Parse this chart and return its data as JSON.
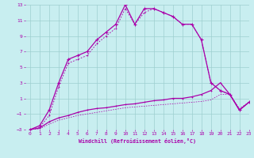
{
  "bg_color": "#c8eef0",
  "grid_color": "#9ecfcf",
  "line_color": "#aa00aa",
  "xlim": [
    -0.5,
    23
  ],
  "ylim": [
    -3,
    13
  ],
  "xticks": [
    0,
    1,
    2,
    3,
    4,
    5,
    6,
    7,
    8,
    9,
    10,
    11,
    12,
    13,
    14,
    15,
    16,
    17,
    18,
    19,
    20,
    21,
    22,
    23
  ],
  "yticks": [
    -3,
    -1,
    1,
    3,
    5,
    7,
    9,
    11,
    13
  ],
  "xlabel": "Windchill (Refroidissement éolien,°C)",
  "line1_x": [
    0,
    1,
    2,
    3,
    4,
    5,
    6,
    7,
    8,
    9,
    10,
    11,
    12,
    13,
    14,
    15,
    16,
    17,
    18,
    19,
    20,
    21,
    22,
    23
  ],
  "line1_y": [
    -3,
    -2.5,
    -0.5,
    3,
    6,
    6.5,
    7,
    8.5,
    9.5,
    10.5,
    13,
    10.5,
    12.5,
    12.5,
    12,
    11.5,
    10.5,
    10.5,
    8.5,
    3,
    2,
    1.5,
    -0.5,
    0.5
  ],
  "line2_x": [
    0,
    1,
    2,
    3,
    4,
    5,
    6,
    7,
    8,
    9,
    10,
    11,
    12,
    13,
    14,
    15,
    16,
    17,
    18,
    19,
    20,
    21,
    22,
    23
  ],
  "line2_y": [
    -3,
    -2.7,
    -1.2,
    2.5,
    5.5,
    6.0,
    6.5,
    8.0,
    9.0,
    10.0,
    12.5,
    10.5,
    12.0,
    12.5,
    12,
    11.5,
    10.5,
    10.5,
    8.5,
    3,
    2,
    1.5,
    -0.5,
    0.5
  ],
  "line3_x": [
    0,
    1,
    2,
    3,
    4,
    5,
    6,
    7,
    8,
    9,
    10,
    11,
    12,
    13,
    14,
    15,
    16,
    17,
    18,
    19,
    20,
    21,
    22,
    23
  ],
  "line3_y": [
    -3,
    -2.8,
    -2.0,
    -1.5,
    -1.2,
    -0.8,
    -0.5,
    -0.3,
    -0.2,
    0.0,
    0.2,
    0.3,
    0.5,
    0.7,
    0.8,
    1.0,
    1.0,
    1.2,
    1.5,
    2.0,
    3.0,
    1.5,
    -0.5,
    0.5
  ],
  "line4_x": [
    0,
    1,
    2,
    3,
    4,
    5,
    6,
    7,
    8,
    9,
    10,
    11,
    12,
    13,
    14,
    15,
    16,
    17,
    18,
    19,
    20,
    21,
    22,
    23
  ],
  "line4_y": [
    -3,
    -2.9,
    -2.3,
    -1.8,
    -1.5,
    -1.2,
    -1.0,
    -0.8,
    -0.6,
    -0.4,
    -0.2,
    -0.1,
    0.0,
    0.1,
    0.2,
    0.3,
    0.4,
    0.5,
    0.6,
    0.8,
    1.5,
    1.5,
    -0.3,
    0.5
  ]
}
